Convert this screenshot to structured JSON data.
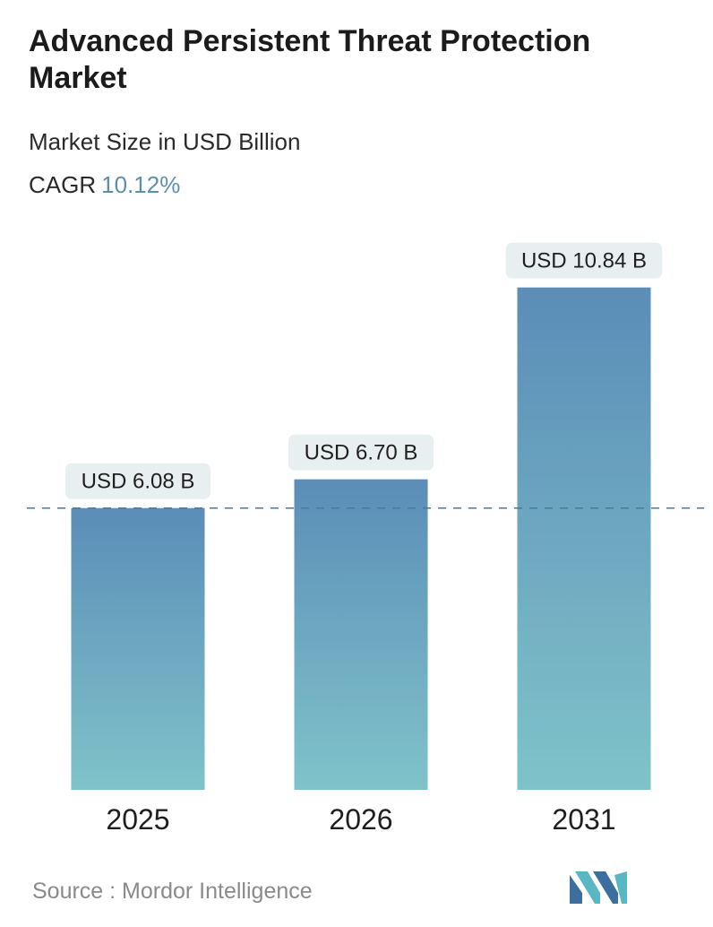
{
  "header": {
    "title": "Advanced Persistent Threat Protection Market",
    "subtitle": "Market Size in USD Billion",
    "cagr_label": "CAGR",
    "cagr_value": "10.12%"
  },
  "footer": {
    "source": "Source :  Mordor Intelligence",
    "logo_icon": "mordor-intelligence-logo-icon"
  },
  "colors": {
    "bar_top": "#5b8db8",
    "bar_bottom": "#7fc3c9",
    "label_bg": "#e8eff1",
    "reference_line": "#4a7a99",
    "cagr_accent": "#5b8fb0"
  },
  "chart_data": {
    "type": "bar",
    "categories": [
      "2025",
      "2026",
      "2031"
    ],
    "values": [
      6.08,
      6.7,
      10.84
    ],
    "data_labels": [
      "USD 6.08 B",
      "USD 6.70 B",
      "USD 10.84 B"
    ],
    "reference_line_value": 6.08,
    "ylim": [
      0,
      12.4
    ],
    "grid": false,
    "legend": "none"
  }
}
